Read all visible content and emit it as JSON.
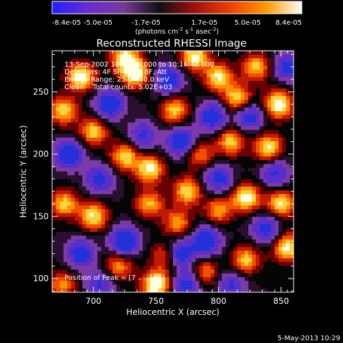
{
  "chart_data": {
    "type": "heatmap",
    "title": "Reconstructed RHESSI Image",
    "xlabel": "Heliocentric X (arcsec)",
    "ylabel": "Heliocentric Y (arcsec)",
    "xlim": [
      667,
      860
    ],
    "ylim": [
      89,
      283
    ],
    "xticks": [
      700,
      750,
      800,
      850
    ],
    "yticks": [
      100,
      150,
      200,
      250
    ],
    "colorbar": {
      "ticks": [
        "-8.4e-05",
        "-5.0e-05",
        "-1.7e-05",
        "1.7e-05",
        "5.0e-05",
        "8.4e-05"
      ],
      "unit_text": "(photons cm",
      "unit_sup1": "-2",
      "unit_mid": " s",
      "unit_sup2": "-1",
      "unit_end": " asec",
      "unit_sup3": "-2",
      "unit_close": ")",
      "colors": [
        "#2020ff",
        "#6a2bd0",
        "#7a3a9a",
        "#101010",
        "#a01010",
        "#f04000",
        "#ff9a00",
        "#ffffff"
      ]
    },
    "annotations": [
      "13-Sep-2002 10:10:42.000 to 10:16:42.000",
      "Detectors: 4F 5F 6F 7F 8F, Att",
      "Energy Range: 25.0 - 50.0 keV",
      "Clean    Total counts: 5.02E+03"
    ],
    "peak_label": "Position of Peak = [",
    "peak_value": "7 .. , 160]",
    "blobs": [
      {
        "x": 690,
        "y": 262,
        "v": 0.9
      },
      {
        "x": 676,
        "y": 235,
        "v": 0.75
      },
      {
        "x": 733,
        "y": 265,
        "v": 0.95
      },
      {
        "x": 725,
        "y": 278,
        "v": 0.8
      },
      {
        "x": 700,
        "y": 218,
        "v": 0.7
      },
      {
        "x": 745,
        "y": 188,
        "v": 0.85
      },
      {
        "x": 725,
        "y": 198,
        "v": 0.75
      },
      {
        "x": 765,
        "y": 235,
        "v": 0.7
      },
      {
        "x": 781,
        "y": 278,
        "v": 0.85
      },
      {
        "x": 800,
        "y": 262,
        "v": 0.8
      },
      {
        "x": 830,
        "y": 270,
        "v": 0.7
      },
      {
        "x": 848,
        "y": 240,
        "v": 0.95
      },
      {
        "x": 815,
        "y": 245,
        "v": 0.75
      },
      {
        "x": 840,
        "y": 205,
        "v": 0.8
      },
      {
        "x": 810,
        "y": 210,
        "v": 0.7
      },
      {
        "x": 785,
        "y": 200,
        "v": 0.55
      },
      {
        "x": 822,
        "y": 165,
        "v": 0.9
      },
      {
        "x": 800,
        "y": 155,
        "v": 0.6
      },
      {
        "x": 850,
        "y": 160,
        "v": 0.8
      },
      {
        "x": 855,
        "y": 125,
        "v": 0.85
      },
      {
        "x": 822,
        "y": 115,
        "v": 0.7
      },
      {
        "x": 677,
        "y": 160,
        "v": 0.7
      },
      {
        "x": 700,
        "y": 150,
        "v": 0.8
      },
      {
        "x": 745,
        "y": 160,
        "v": 0.65
      },
      {
        "x": 767,
        "y": 145,
        "v": 0.6
      },
      {
        "x": 775,
        "y": 170,
        "v": 0.75
      },
      {
        "x": 750,
        "y": 95,
        "v": 1.0
      },
      {
        "x": 720,
        "y": 110,
        "v": 0.6
      },
      {
        "x": 790,
        "y": 105,
        "v": 0.55
      },
      {
        "x": 675,
        "y": 95,
        "v": 0.55
      },
      {
        "x": 757,
        "y": 118,
        "v": 0.5
      },
      {
        "x": 713,
        "y": 240,
        "v": -0.9
      },
      {
        "x": 680,
        "y": 200,
        "v": -0.9
      },
      {
        "x": 760,
        "y": 260,
        "v": -0.8
      },
      {
        "x": 770,
        "y": 210,
        "v": -0.9
      },
      {
        "x": 795,
        "y": 230,
        "v": -0.8
      },
      {
        "x": 825,
        "y": 230,
        "v": -0.7
      },
      {
        "x": 855,
        "y": 270,
        "v": -0.7
      },
      {
        "x": 705,
        "y": 180,
        "v": -0.7
      },
      {
        "x": 725,
        "y": 130,
        "v": -1.0
      },
      {
        "x": 690,
        "y": 120,
        "v": -0.8
      },
      {
        "x": 790,
        "y": 130,
        "v": -0.9
      },
      {
        "x": 770,
        "y": 120,
        "v": -0.8
      },
      {
        "x": 838,
        "y": 140,
        "v": -0.7
      },
      {
        "x": 800,
        "y": 180,
        "v": -0.7
      },
      {
        "x": 845,
        "y": 185,
        "v": -0.6
      },
      {
        "x": 740,
        "y": 215,
        "v": -0.6
      },
      {
        "x": 705,
        "y": 95,
        "v": -0.6
      },
      {
        "x": 810,
        "y": 95,
        "v": -0.6
      },
      {
        "x": 775,
        "y": 95,
        "v": -0.7
      }
    ]
  },
  "footer": {
    "date": "5-May-2013 10:29"
  }
}
